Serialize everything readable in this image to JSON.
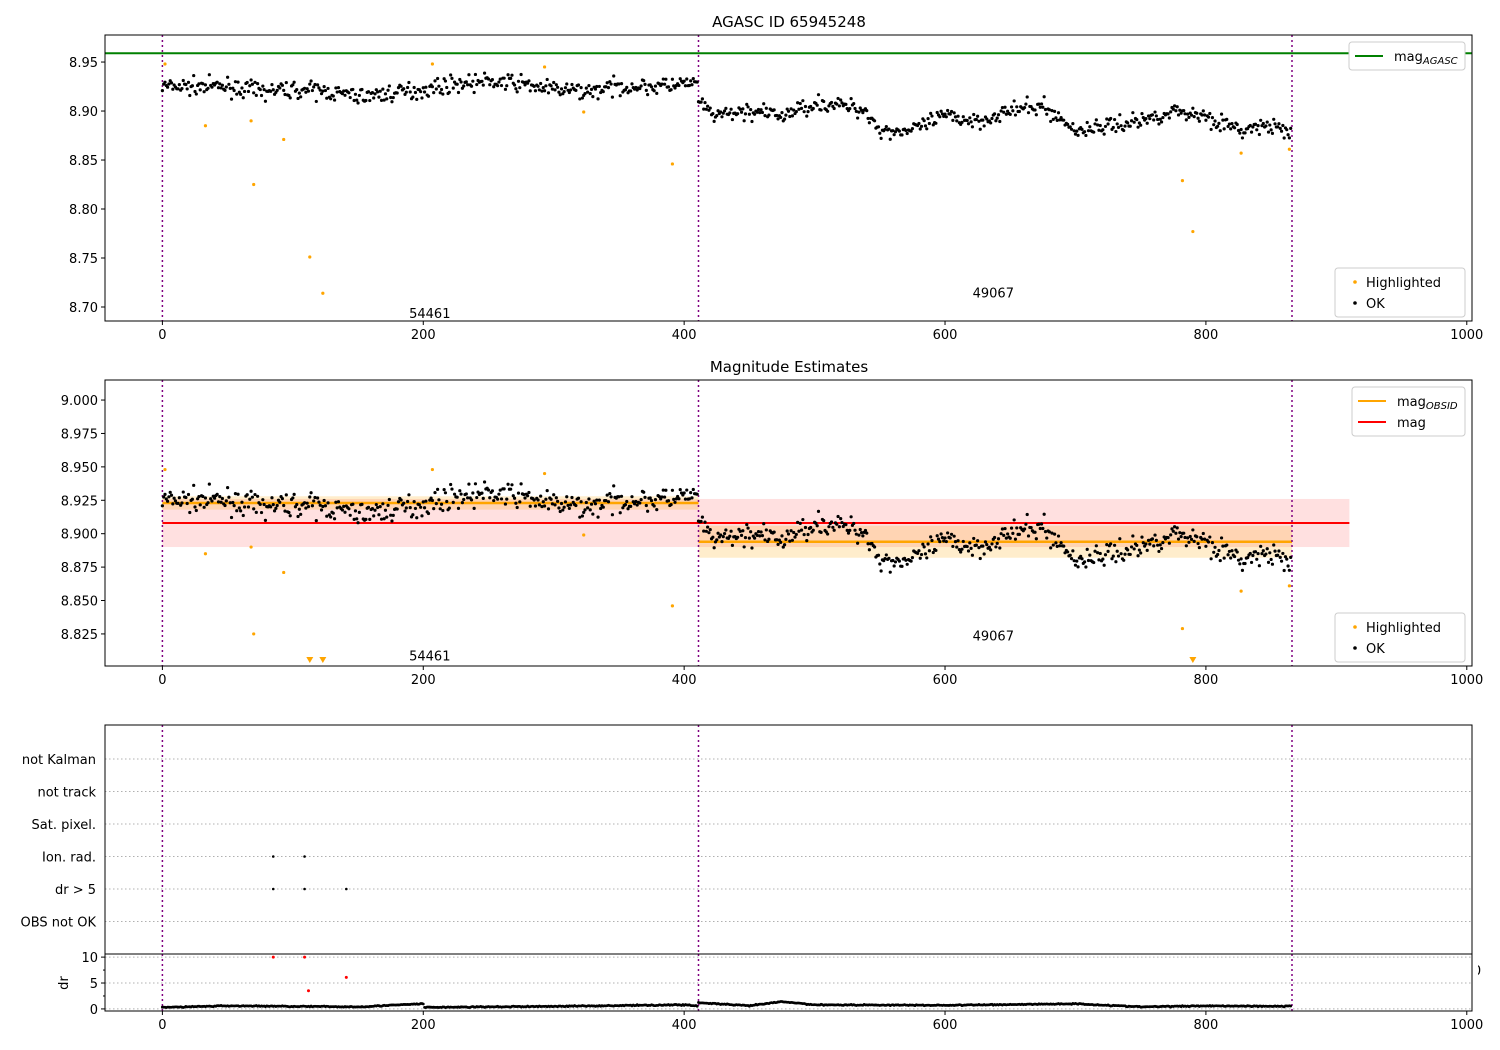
{
  "chart_data": [
    {
      "type": "scatter",
      "title": "AGASC ID 65945248",
      "xlim": [
        -44,
        1004
      ],
      "ylim": [
        8.6857,
        8.9776
      ],
      "xticks": [
        0,
        200,
        400,
        600,
        800,
        1000
      ],
      "yticks": [
        8.7,
        8.75,
        8.8,
        8.85,
        8.9,
        8.95
      ],
      "mag_agasc": 8.959,
      "obsid_boundaries": [
        0,
        411,
        866
      ],
      "annotations": [
        {
          "text": "54461",
          "x": 205,
          "y": 8.694
        },
        {
          "text": "49067",
          "x": 637,
          "y": 8.715
        }
      ],
      "legend_upper": [
        {
          "label": "mag",
          "sub": "AGASC",
          "color": "#008000"
        }
      ],
      "legend_lower": [
        {
          "label": "Highlighted",
          "color": "#ffa500"
        },
        {
          "label": "OK",
          "color": "#000000"
        }
      ],
      "ok_trend": {
        "x": [
          0,
          25,
          50,
          75,
          100,
          125,
          150,
          175,
          200,
          225,
          250,
          275,
          300,
          325,
          350,
          375,
          410,
          412,
          425,
          450,
          475,
          500,
          525,
          540,
          550,
          575,
          600,
          625,
          650,
          675,
          700,
          725,
          750,
          775,
          800,
          825,
          850,
          866
        ],
        "mag": [
          8.925,
          8.925,
          8.925,
          8.92,
          8.922,
          8.92,
          8.915,
          8.918,
          8.922,
          8.928,
          8.93,
          8.928,
          8.922,
          8.92,
          8.925,
          8.925,
          8.928,
          8.905,
          8.895,
          8.9,
          8.895,
          8.908,
          8.905,
          8.9,
          8.88,
          8.88,
          8.895,
          8.89,
          8.9,
          8.905,
          8.88,
          8.885,
          8.89,
          8.9,
          8.895,
          8.88,
          8.885,
          8.875
        ],
        "n": 866,
        "noise": 0.007
      },
      "highlighted": [
        [
          2,
          8.948
        ],
        [
          33,
          8.885
        ],
        [
          68,
          8.89
        ],
        [
          70,
          8.825
        ],
        [
          93,
          8.871
        ],
        [
          113,
          8.751
        ],
        [
          123,
          8.714
        ],
        [
          207,
          8.948
        ],
        [
          293,
          8.945
        ],
        [
          323,
          8.899
        ],
        [
          391,
          8.846
        ],
        [
          782,
          8.829
        ],
        [
          790,
          8.777
        ],
        [
          827,
          8.857
        ],
        [
          864,
          8.861
        ]
      ]
    },
    {
      "type": "scatter",
      "title": "Magnitude Estimates",
      "ylim": [
        8.801,
        9.015
      ],
      "yticks": [
        8.825,
        8.85,
        8.875,
        8.9,
        8.925,
        8.95,
        8.975,
        9.0
      ],
      "yticklabels": [
        "8.825",
        "8.850",
        "8.875",
        "8.900",
        "8.925",
        "8.950",
        "8.975",
        "9.000"
      ],
      "mag": {
        "value": 8.908,
        "lo": 8.89,
        "hi": 8.926,
        "xmax": 910,
        "color": "#ff0000"
      },
      "mag_obsid": [
        {
          "x0": 0,
          "x1": 411,
          "value": 8.923,
          "lo": 8.918,
          "hi": 8.928
        },
        {
          "x0": 411,
          "x1": 866,
          "value": 8.894,
          "lo": 8.882,
          "hi": 8.906
        }
      ],
      "annotations": [
        {
          "text": "54461",
          "x": 205,
          "y": 8.809
        },
        {
          "text": "49067",
          "x": 637,
          "y": 8.824
        }
      ],
      "legend_upper": [
        {
          "label": "mag",
          "sub": "OBSID",
          "color": "#ffa500"
        },
        {
          "label": "mag",
          "sub": "",
          "color": "#ff0000"
        }
      ],
      "legend_lower": [
        {
          "label": "Highlighted",
          "color": "#ffa500"
        },
        {
          "label": "OK",
          "color": "#000000"
        }
      ]
    },
    {
      "type": "scatter",
      "title": "",
      "categories": [
        "not Kalman",
        "not track",
        "Sat. pixel.",
        "Ion. rad.",
        "dr > 5",
        "OBS not OK"
      ],
      "flags": {
        "Ion. rad.": [
          85,
          109
        ],
        "dr > 5": [
          85,
          109,
          141
        ]
      }
    },
    {
      "type": "scatter",
      "ylabel": "dr",
      "ylim": [
        -0.4,
        10.6
      ],
      "yticks": [
        0,
        5,
        10
      ],
      "clipped_label": "0",
      "dr_trend": {
        "x": [
          0,
          50,
          100,
          150,
          200,
          201,
          300,
          400,
          410,
          411,
          450,
          475,
          500,
          600,
          700,
          750,
          800,
          866
        ],
        "dr": [
          0.3,
          0.6,
          0.5,
          0.4,
          1.0,
          0.3,
          0.5,
          0.8,
          0.6,
          1.2,
          0.6,
          1.4,
          0.8,
          0.7,
          1.0,
          0.4,
          0.6,
          0.5
        ]
      },
      "dr_highlighted": [
        [
          85,
          10
        ],
        [
          109,
          10
        ],
        [
          112,
          3.5
        ],
        [
          141,
          6.1
        ]
      ]
    }
  ]
}
